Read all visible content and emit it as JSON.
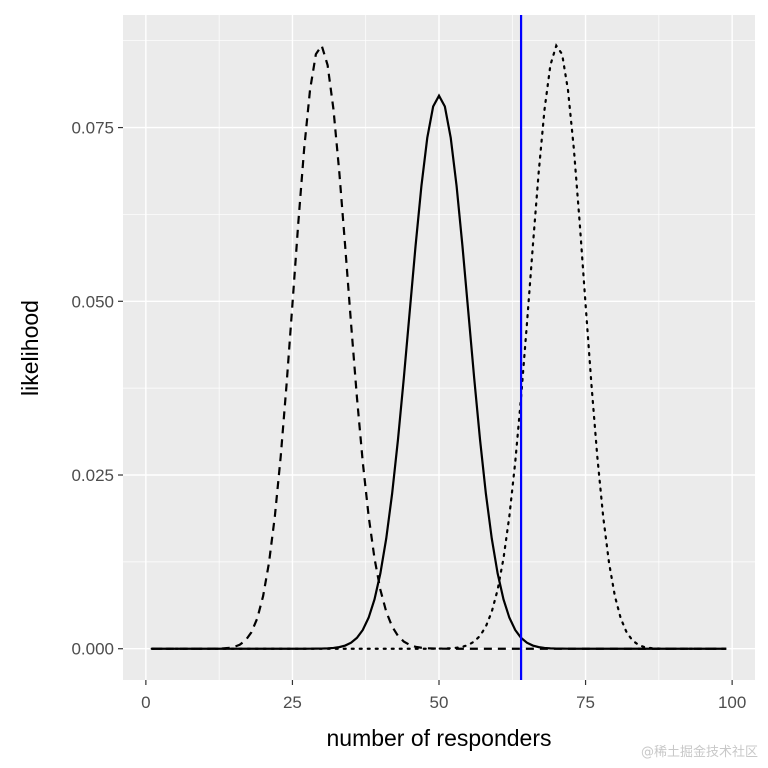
{
  "chart_data": {
    "type": "line",
    "title": "",
    "xlabel": "number of responders",
    "ylabel": "likelihood",
    "xlim": [
      -3.9,
      103.9
    ],
    "ylim": [
      -0.0045,
      0.0912
    ],
    "x_ticks": [
      0,
      25,
      50,
      75,
      100
    ],
    "x_tick_labels": [
      "0",
      "25",
      "50",
      "75",
      "100"
    ],
    "y_ticks": [
      0,
      0.025,
      0.05,
      0.075
    ],
    "y_tick_labels": [
      "0.000",
      "0.025",
      "0.050",
      "0.075"
    ],
    "grid": true,
    "background": "#EBEBEB",
    "x_range": [
      1,
      99
    ],
    "series": [
      {
        "distribution": "binomial",
        "n": 100,
        "p": 0.3,
        "linetype": "dashed",
        "color": "#000000",
        "peak": {
          "x": 30,
          "y": 0.0868
        }
      },
      {
        "distribution": "binomial",
        "n": 100,
        "p": 0.5,
        "linetype": "solid",
        "color": "#000000",
        "peak": {
          "x": 50,
          "y": 0.0796
        }
      },
      {
        "distribution": "binomial",
        "n": 100,
        "p": 0.7,
        "linetype": "dotted",
        "color": "#000000",
        "peak": {
          "x": 70,
          "y": 0.0868
        }
      }
    ],
    "vline": {
      "x": 64,
      "color": "#0000FF"
    }
  },
  "watermark": "@稀土掘金技术社区"
}
